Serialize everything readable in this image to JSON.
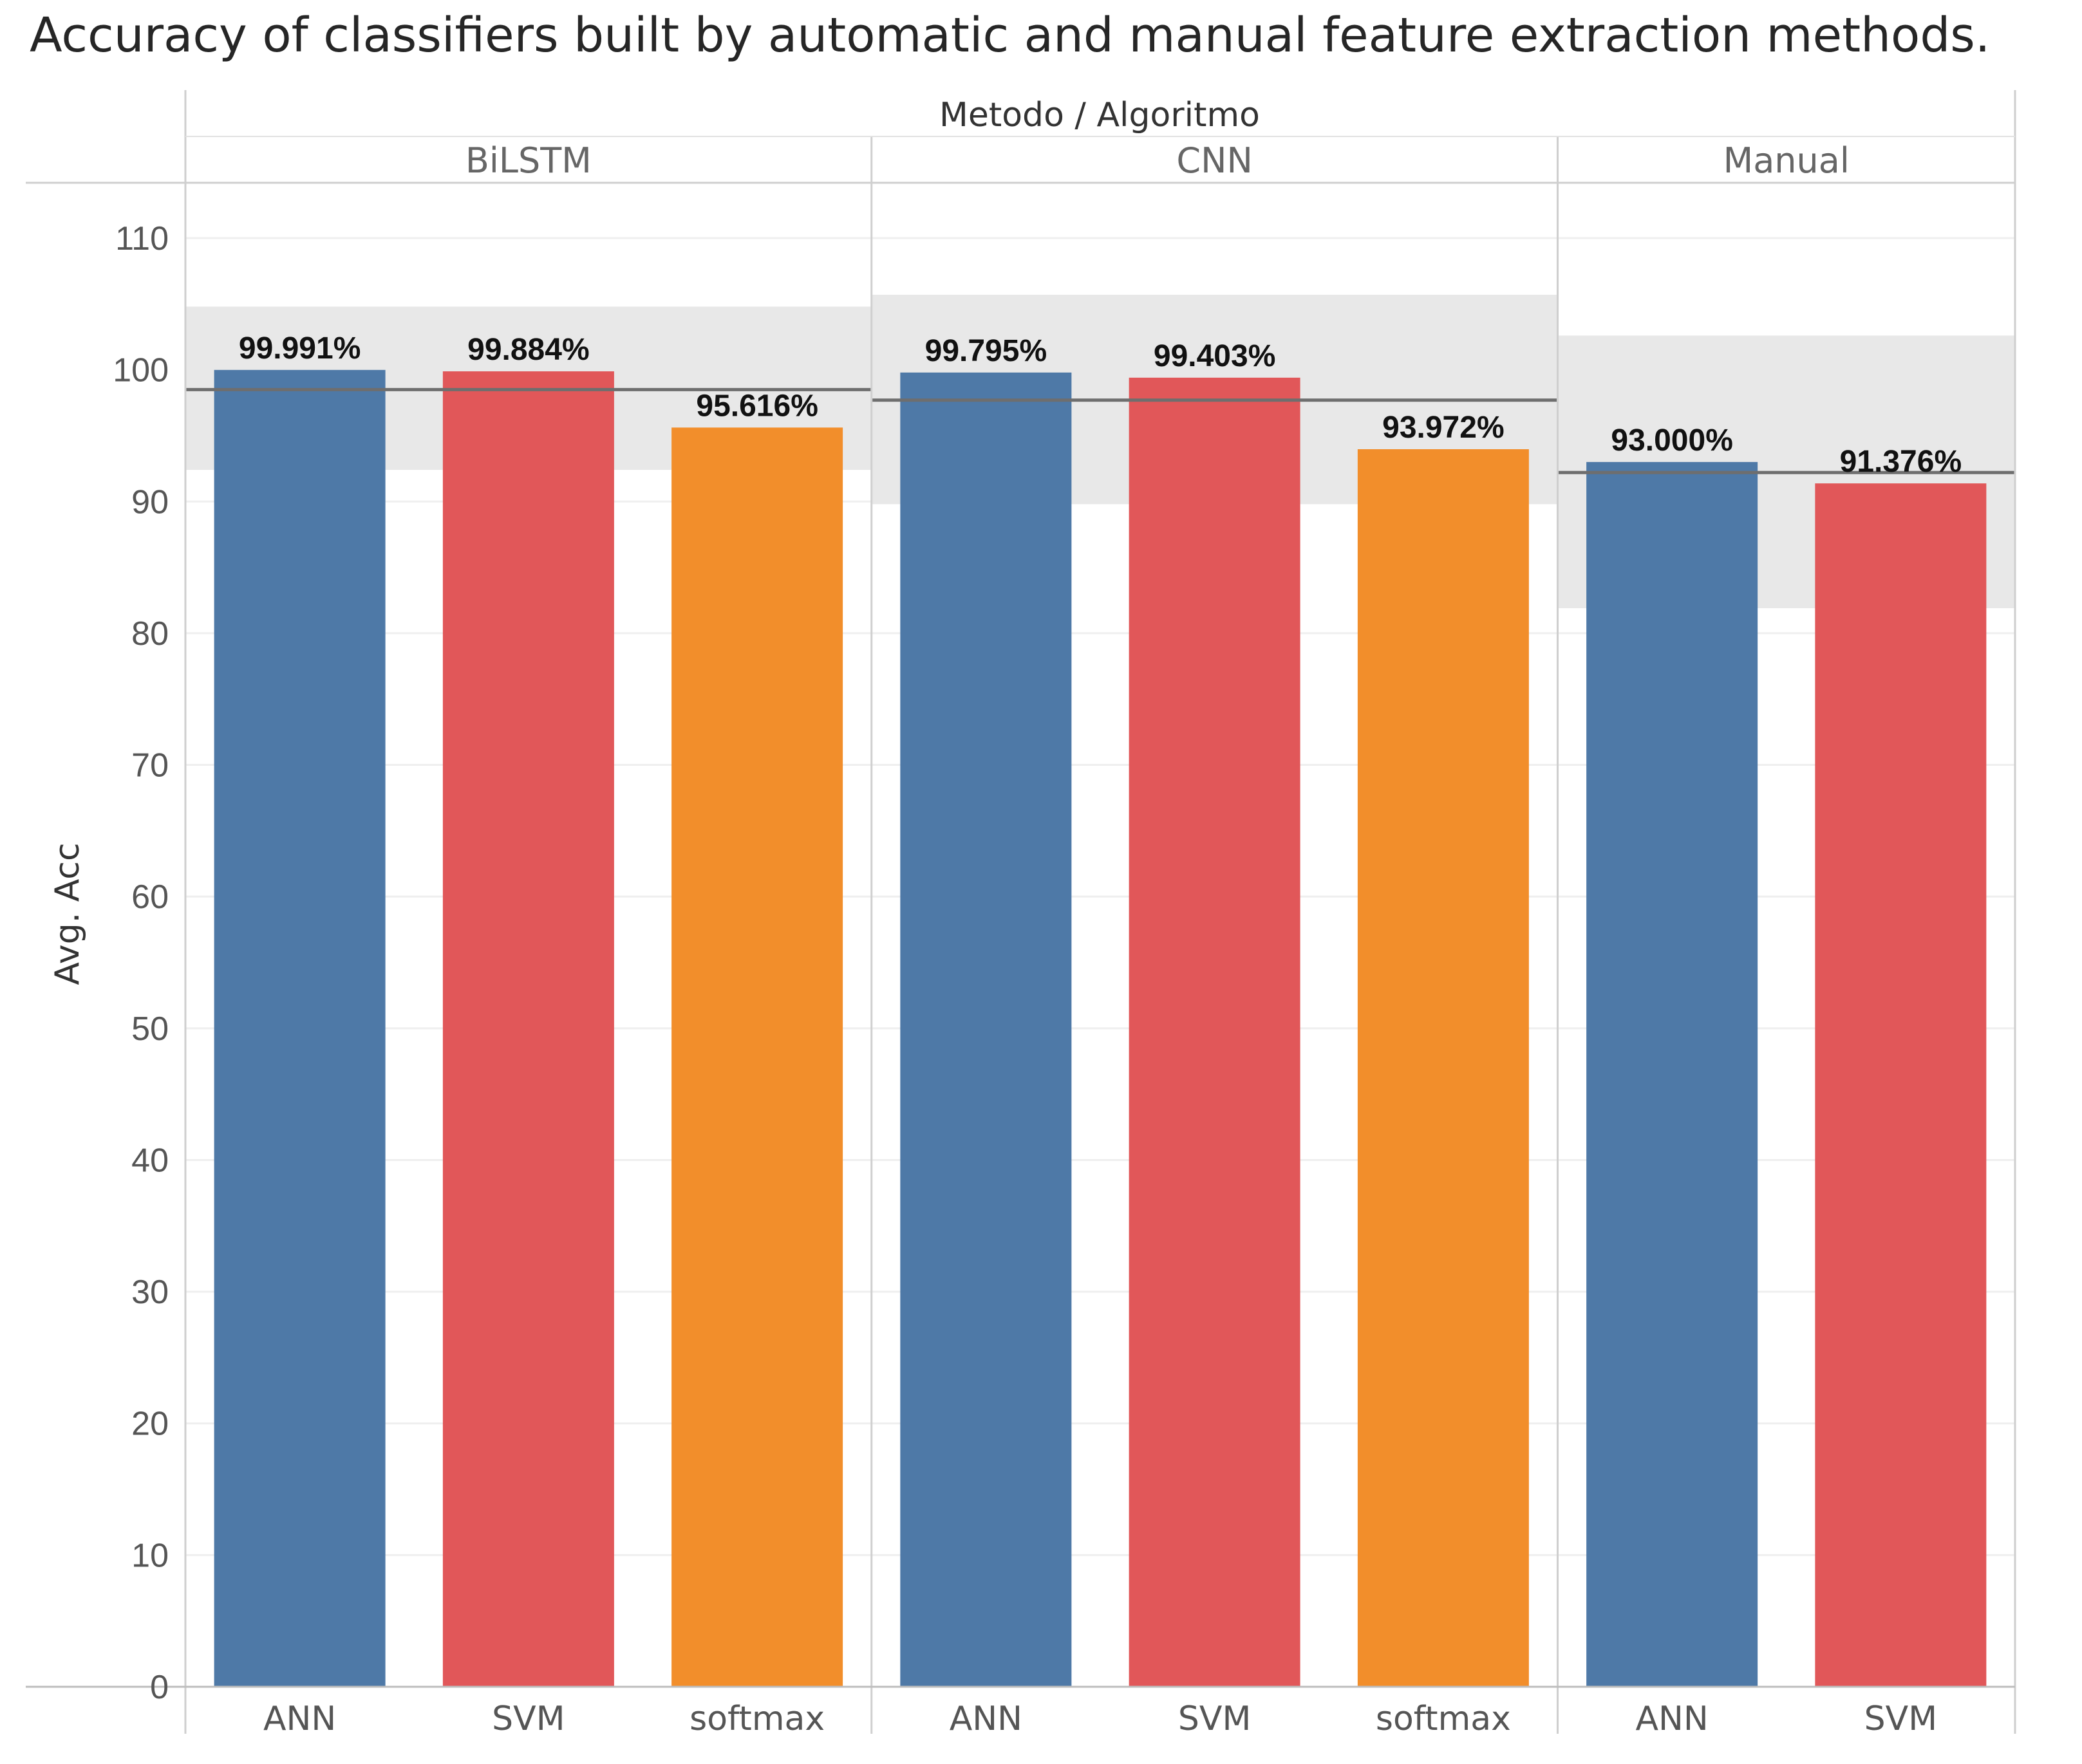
{
  "chart_data": {
    "type": "bar",
    "title": "Accuracy of classifiers built by automatic and manual feature extraction methods.",
    "column_header": "Metodo / Algoritmo",
    "ylabel": "Avg. Acc",
    "ylim": [
      0,
      110
    ],
    "yticks": [
      0,
      10,
      20,
      30,
      40,
      50,
      60,
      70,
      80,
      90,
      100,
      110
    ],
    "grid": true,
    "groups": [
      {
        "name": "BiLSTM",
        "bars": [
          {
            "category": "ANN",
            "value": 99.991,
            "label": "99.991%",
            "color": "#4e79a7"
          },
          {
            "category": "SVM",
            "value": 99.884,
            "label": "99.884%",
            "color": "#e15759"
          },
          {
            "category": "softmax",
            "value": 95.616,
            "label": "95.616%",
            "color": "#f28e2b"
          }
        ],
        "reference_line": 98.5,
        "band": [
          92.4,
          104.8
        ]
      },
      {
        "name": "CNN",
        "bars": [
          {
            "category": "ANN",
            "value": 99.795,
            "label": "99.795%",
            "color": "#4e79a7"
          },
          {
            "category": "SVM",
            "value": 99.403,
            "label": "99.403%",
            "color": "#e15759"
          },
          {
            "category": "softmax",
            "value": 93.972,
            "label": "93.972%",
            "color": "#f28e2b"
          }
        ],
        "reference_line": 97.7,
        "band": [
          89.8,
          105.7
        ]
      },
      {
        "name": "Manual",
        "bars": [
          {
            "category": "ANN",
            "value": 93.0,
            "label": "93.000%",
            "color": "#4e79a7"
          },
          {
            "category": "SVM",
            "value": 91.376,
            "label": "91.376%",
            "color": "#e15759"
          }
        ],
        "reference_line": 92.2,
        "band": [
          81.9,
          102.6
        ]
      }
    ]
  }
}
